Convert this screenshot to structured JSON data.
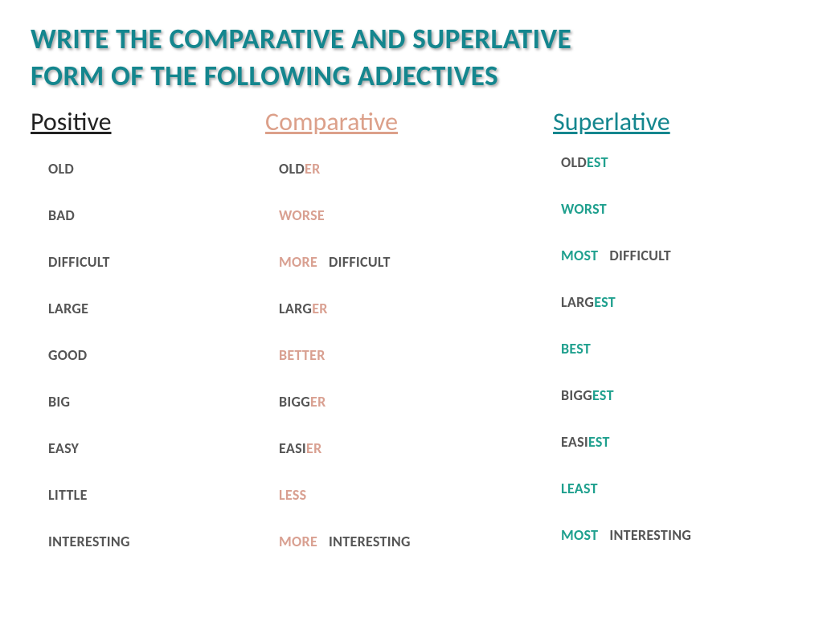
{
  "title": {
    "line1": "Write the comparative and superlative",
    "line2": "form of the following adjectives",
    "color": "#14868e"
  },
  "headers": {
    "positive": "Positive",
    "comparative": "Comparative",
    "superlative": "Superlative",
    "positive_color": "#222222",
    "comparative_color": "#dca08a",
    "superlative_color": "#14868e"
  },
  "rows": [
    {
      "positive": "OLD",
      "comparative": {
        "stem": "OLD",
        "suffix": "ER"
      },
      "superlative": {
        "stem": "OLD",
        "suffix": "EST"
      }
    },
    {
      "positive": "BAD",
      "comparative": {
        "irregular": "WORSE"
      },
      "superlative": {
        "irregular": "WORST"
      }
    },
    {
      "positive": "DIFFICULT",
      "comparative": {
        "more": "MORE",
        "word": "DIFFICULT"
      },
      "superlative": {
        "more": "MOST",
        "word": "DIFFICULT"
      }
    },
    {
      "positive": "LARGE",
      "comparative": {
        "stem": "LARG",
        "suffix": "ER"
      },
      "superlative": {
        "stem": "LARG",
        "suffix": "EST"
      }
    },
    {
      "positive": "GOOD",
      "comparative": {
        "irregular": "BETTER"
      },
      "superlative": {
        "irregular": "BEST"
      }
    },
    {
      "positive": "BIG",
      "comparative": {
        "stem": "BIGG",
        "suffix": "ER"
      },
      "superlative": {
        "stem": "BIGG",
        "suffix": "EST"
      }
    },
    {
      "positive": "EASY",
      "comparative": {
        "stem": "EASI",
        "suffix": "ER"
      },
      "superlative": {
        "stem": "EASI",
        "suffix": "EST"
      }
    },
    {
      "positive": "LITTLE",
      "comparative": {
        "irregular": "LESS"
      },
      "superlative": {
        "irregular": "LEAST"
      }
    },
    {
      "positive": "INTERESTING",
      "comparative": {
        "more": "MORE",
        "word": "INTERESTING"
      },
      "superlative": {
        "more": "MOST",
        "word": "INTERESTING"
      }
    }
  ],
  "colors": {
    "stem": "#555555",
    "comp_highlight": "#d9a091",
    "sup_highlight": "#1fa08e",
    "background": "#ffffff"
  },
  "typography": {
    "title_fontsize": 35,
    "header_fontsize": 32,
    "cell_fontsize": 18,
    "cell_fontweight": 700
  }
}
